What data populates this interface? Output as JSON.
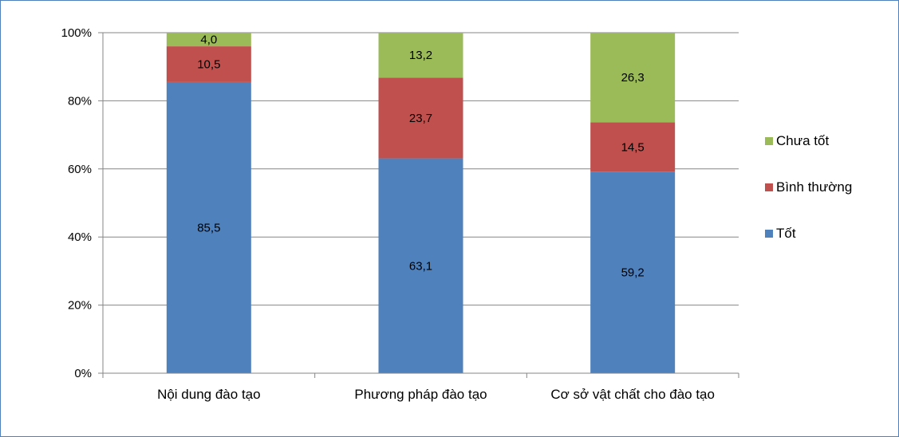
{
  "chart_data": {
    "type": "bar",
    "stacked": true,
    "percent": true,
    "categories": [
      "Nội dung đào tạo",
      "Phương pháp đào tạo",
      "Cơ sở vật chất cho đào tạo"
    ],
    "series": [
      {
        "name": "Tốt",
        "values": [
          85.5,
          63.1,
          59.2
        ],
        "labels": [
          "85,5",
          "63,1",
          "59,2"
        ],
        "color": "#4f81bd"
      },
      {
        "name": "Bình thường",
        "values": [
          10.5,
          23.7,
          14.5
        ],
        "labels": [
          "10,5",
          "23,7",
          "14,5"
        ],
        "color": "#c0504d"
      },
      {
        "name": "Chưa tốt",
        "values": [
          4.0,
          13.2,
          26.3
        ],
        "labels": [
          "4,0",
          "13,2",
          "26,3"
        ],
        "color": "#9bbb59"
      }
    ],
    "y_ticks": [
      "0%",
      "20%",
      "40%",
      "60%",
      "80%",
      "100%"
    ],
    "ylim": [
      0,
      100
    ],
    "grid": true,
    "legend_position": "right",
    "legend_order": [
      "Chưa tốt",
      "Bình thường",
      "Tốt"
    ],
    "gridline_color": "#868686",
    "axis_color": "#868686"
  }
}
